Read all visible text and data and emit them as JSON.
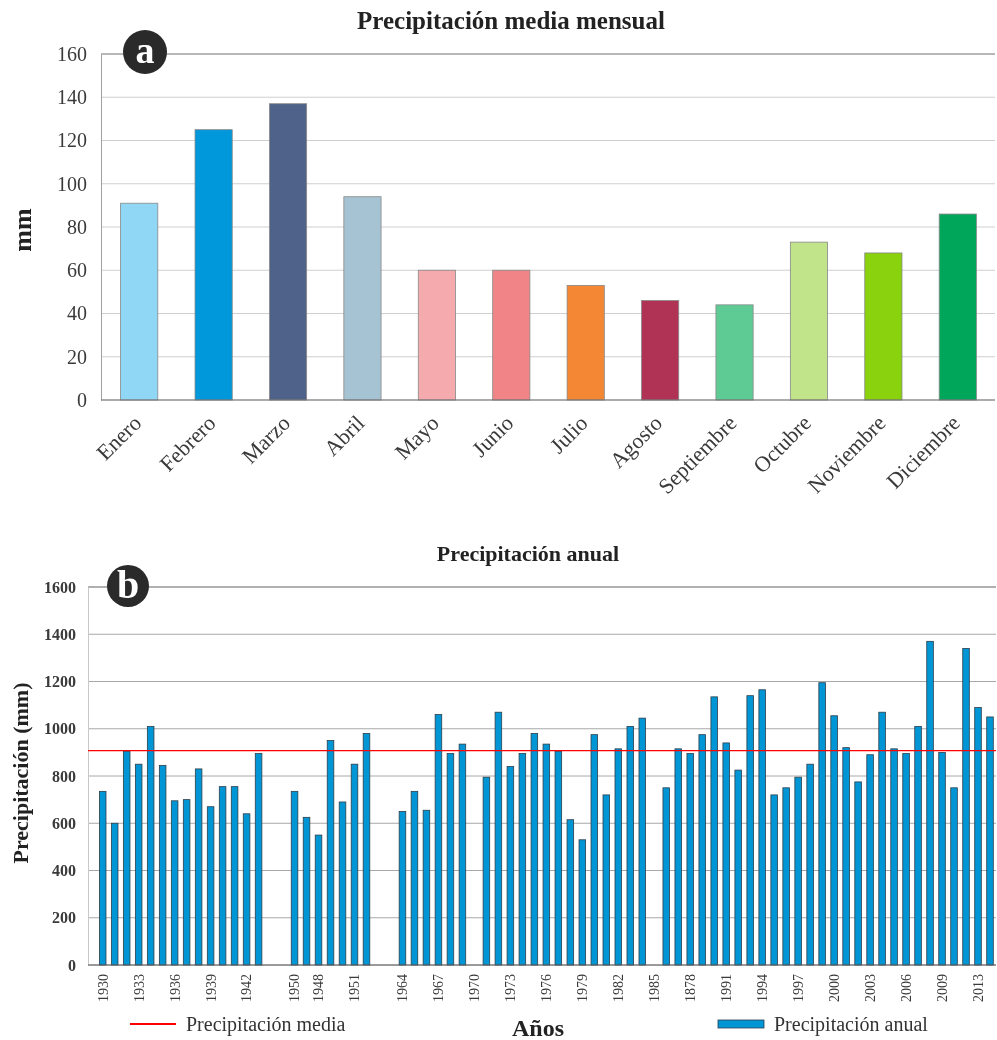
{
  "chart_data": [
    {
      "type": "bar",
      "title": "Precipitación media mensual",
      "ylabel": "mm",
      "annotations": [
        "a"
      ],
      "categories": [
        "Enero",
        "Febrero",
        "Marzo",
        "Abril",
        "Mayo",
        "Junio",
        "Julio",
        "Agosto",
        "Septiembre",
        "Octubre",
        "Noviembre",
        "Diciembre"
      ],
      "values": [
        91,
        125,
        137,
        94,
        60,
        60,
        53,
        46,
        44,
        73,
        68,
        86
      ],
      "colors": [
        "#8fd7f5",
        "#0098db",
        "#4f6289",
        "#a6c3d3",
        "#f5aaae",
        "#f08486",
        "#f48734",
        "#b03255",
        "#5ecb95",
        "#c1e38a",
        "#8ad10e",
        "#00a65a"
      ],
      "ylim": [
        0,
        160
      ],
      "yticks": [
        0,
        20,
        40,
        60,
        80,
        100,
        120,
        140,
        160
      ],
      "grid": "y"
    },
    {
      "type": "bar",
      "title": "Precipitación anual",
      "xlabel": "Años",
      "ylabel": "Precipitación (mm)",
      "annotations": [
        "b"
      ],
      "categories": [
        "1930",
        null,
        null,
        "1933",
        null,
        null,
        "1936",
        null,
        null,
        "1939",
        null,
        null,
        "1942",
        null,
        null,
        null,
        "1950",
        null,
        "1948",
        null,
        null,
        "1951",
        null,
        null,
        null,
        "1964",
        null,
        null,
        "1967",
        null,
        null,
        "1970",
        null,
        null,
        "1973",
        null,
        null,
        "1976",
        null,
        null,
        "1979",
        null,
        null,
        "1982",
        null,
        null,
        "1985",
        null,
        null,
        "1878",
        null,
        null,
        "1991",
        null,
        null,
        "1994",
        null,
        null,
        "1997",
        null,
        null,
        "2000",
        null,
        null,
        "2003",
        null,
        null,
        "2006",
        null,
        null,
        "2009",
        null,
        null,
        "2013",
        null
      ],
      "series": [
        {
          "name": "Precipitación anual",
          "color": "#0096d6",
          "values": [
            735,
            600,
            905,
            850,
            1010,
            845,
            695,
            700,
            830,
            670,
            755,
            755,
            640,
            895,
            null,
            null,
            735,
            625,
            550,
            950,
            690,
            850,
            980,
            null,
            null,
            650,
            735,
            655,
            1060,
            895,
            935,
            null,
            795,
            1070,
            840,
            895,
            980,
            935,
            905,
            615,
            530,
            975,
            720,
            915,
            1010,
            1045,
            null,
            750,
            915,
            895,
            975,
            1135,
            940,
            825,
            1140,
            1165,
            720,
            750,
            795,
            850,
            1195,
            1055,
            920,
            775,
            890,
            1070,
            915,
            895,
            1010,
            1370,
            900,
            750,
            1340,
            1090,
            1050
          ]
        }
      ],
      "ref_lines": [
        {
          "axis": "y",
          "value": 907,
          "label": "Precipitación media",
          "color": "#ff0000"
        }
      ],
      "ylim": [
        0,
        1600
      ],
      "yticks": [
        0,
        200,
        400,
        600,
        800,
        1000,
        1200,
        1400,
        1600
      ],
      "grid": "y",
      "legend": "bottom"
    }
  ]
}
